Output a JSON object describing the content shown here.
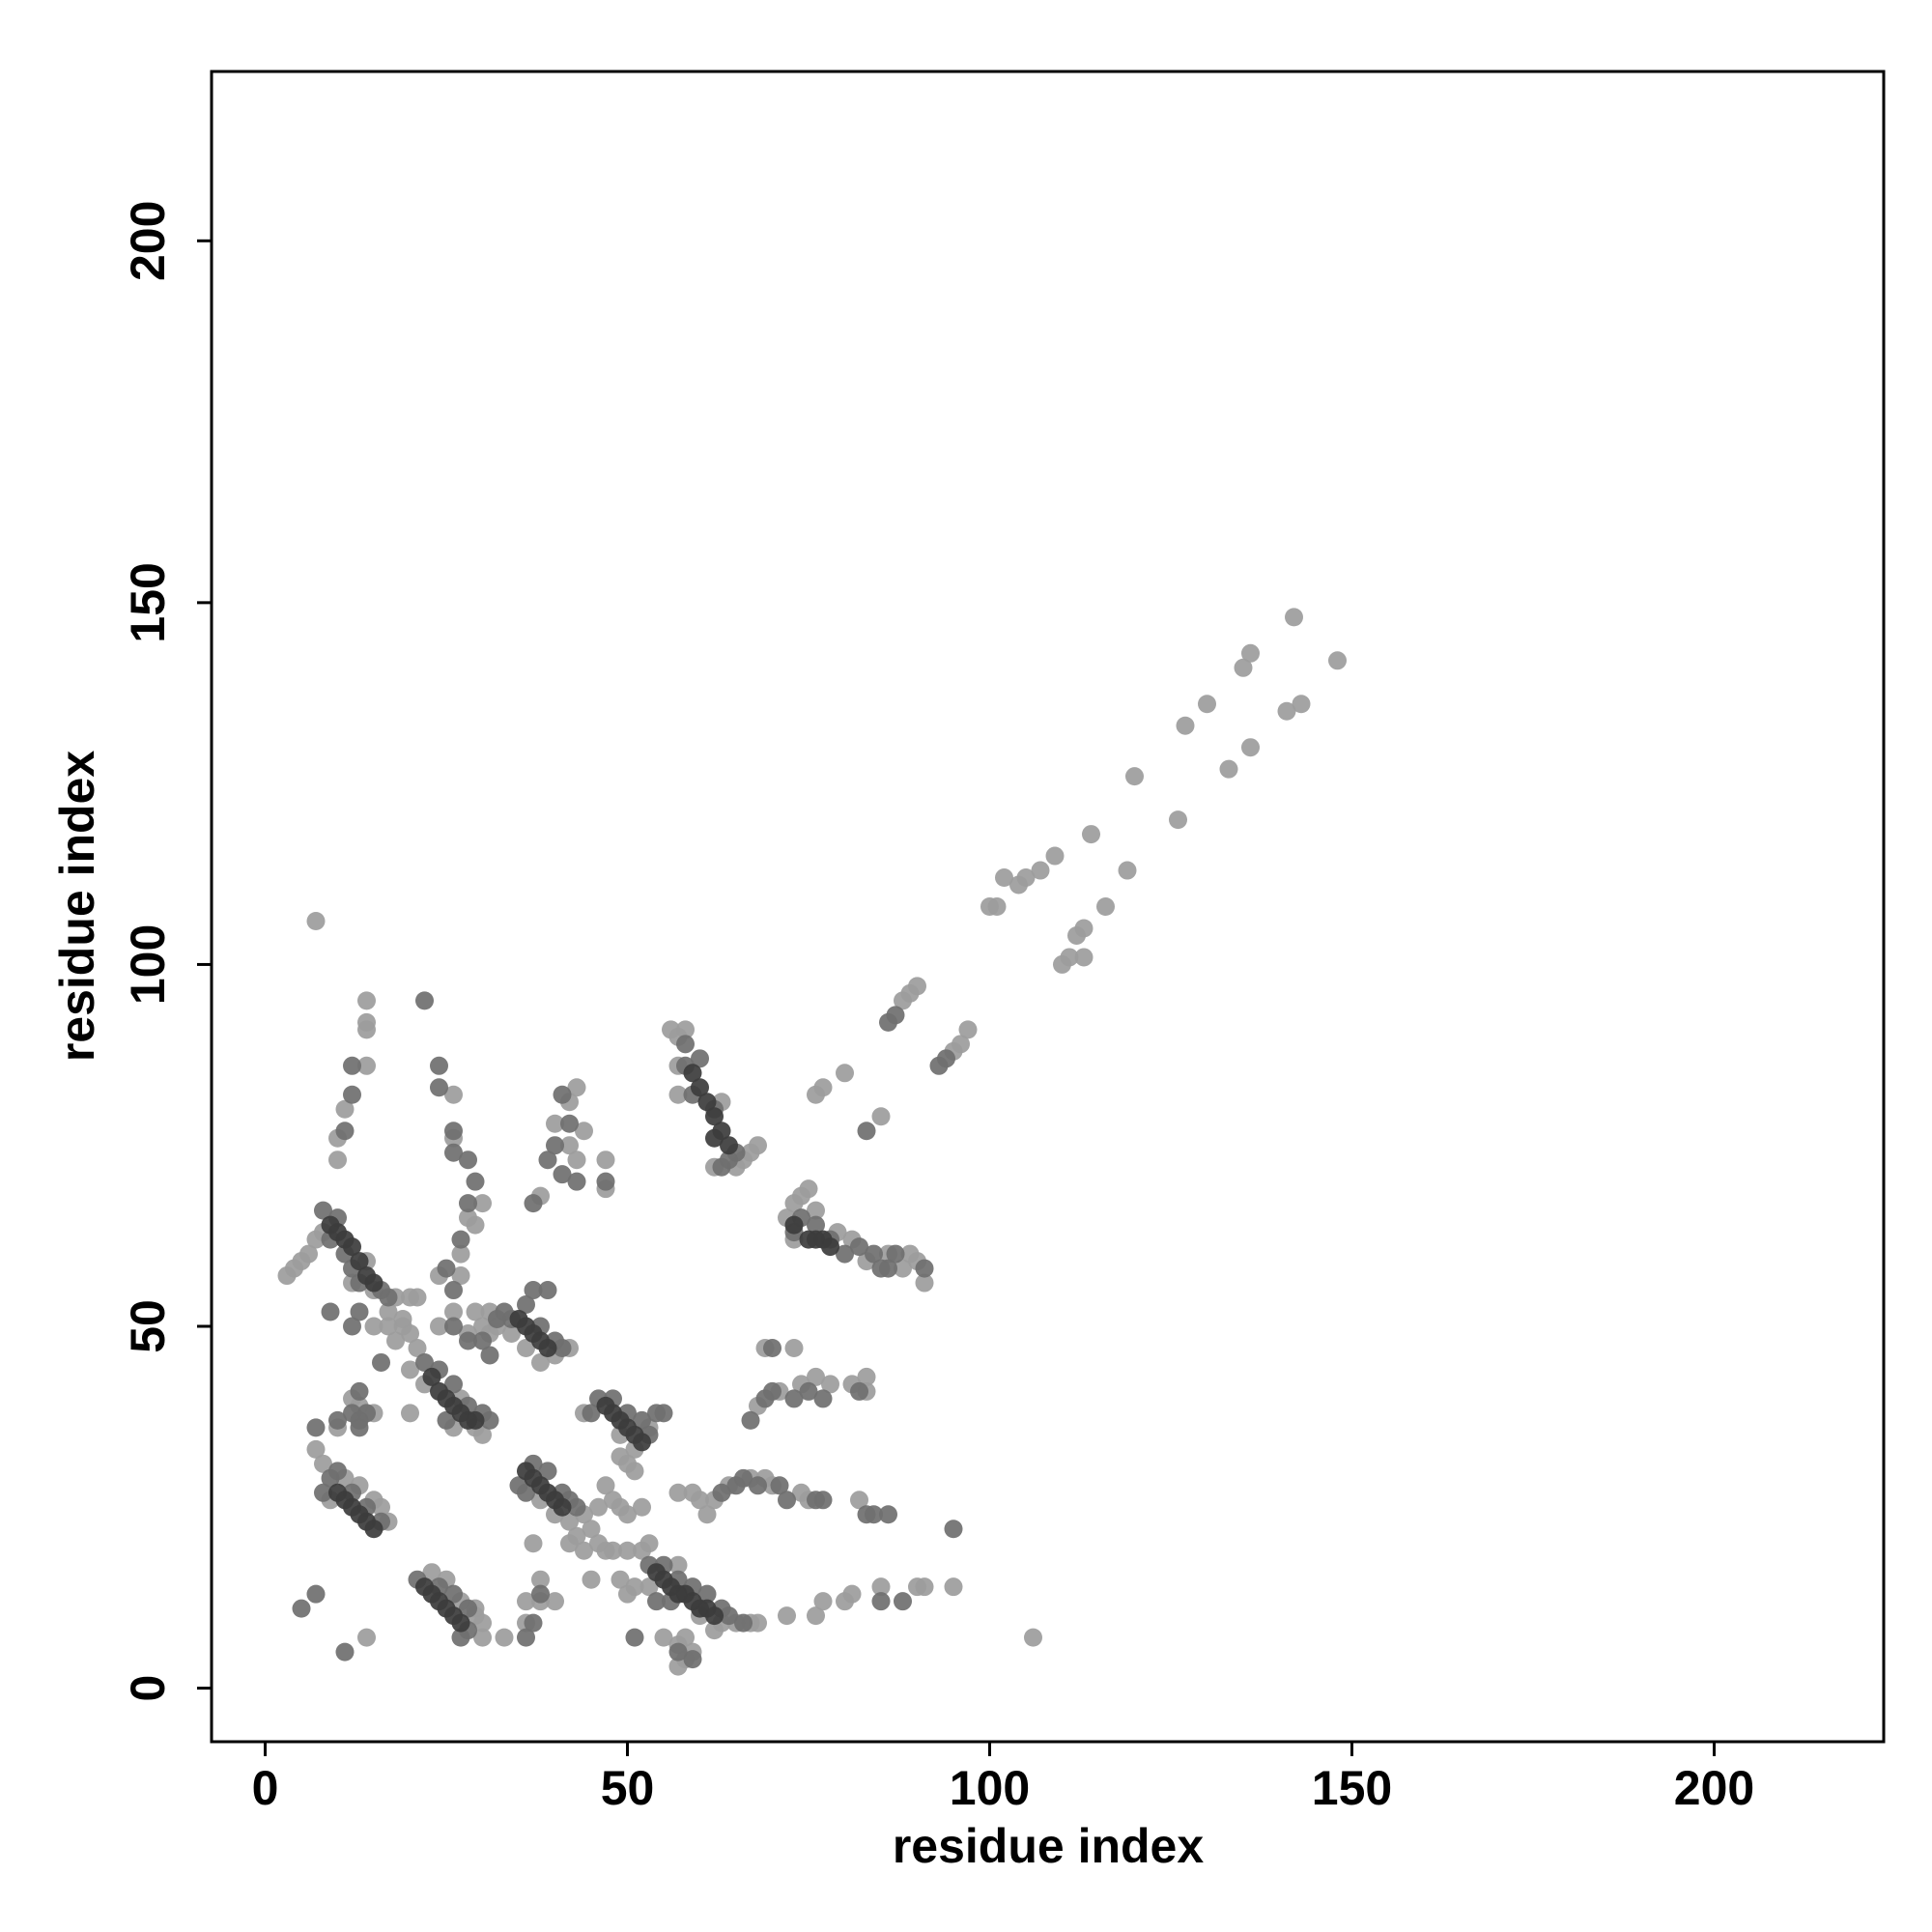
{
  "chart_data": {
    "type": "scatter",
    "xlabel": "residue index",
    "ylabel": "residue index",
    "xlim": [
      -7.4,
      223.4
    ],
    "ylim": [
      -7.4,
      223.4
    ],
    "xticks": [
      0,
      50,
      100,
      150,
      200
    ],
    "yticks": [
      0,
      50,
      100,
      150,
      200
    ],
    "series": [
      {
        "color": "#9c9c9c",
        "x": [
          3,
          5,
          6,
          7,
          8,
          4,
          14,
          15,
          18,
          20,
          21,
          12,
          17,
          11,
          13,
          15,
          16,
          17,
          9,
          23,
          25,
          27,
          29,
          30,
          30,
          29,
          21,
          20,
          22,
          27,
          29,
          30,
          26,
          20,
          19,
          32,
          34,
          36,
          38,
          40,
          31,
          30,
          28,
          42,
          38,
          40,
          42,
          44,
          45,
          43,
          42,
          44,
          47,
          46,
          44,
          49,
          51,
          53,
          50,
          49,
          51,
          47,
          48,
          49,
          50,
          52,
          53,
          52,
          50,
          48,
          49,
          51,
          53,
          57,
          60,
          63,
          65,
          67,
          68,
          62,
          57,
          58,
          57,
          59,
          58,
          55,
          50,
          56,
          57,
          58,
          57,
          57,
          63,
          65,
          66,
          67,
          68,
          62,
          72,
          73,
          74,
          75,
          76,
          79,
          81,
          83,
          86,
          88,
          89,
          90,
          91,
          73,
          68,
          69,
          71,
          73,
          74,
          76,
          78,
          81,
          83,
          83,
          62,
          64,
          67,
          69,
          70,
          74,
          75,
          82,
          59,
          57,
          60,
          61,
          76,
          77,
          80,
          85,
          88,
          89,
          90,
          95,
          96,
          97,
          100,
          101,
          102,
          104,
          105,
          107,
          109,
          110,
          111,
          112,
          113,
          113,
          114,
          116,
          119,
          120,
          126,
          127,
          130,
          133,
          135,
          136,
          136,
          141,
          142,
          143,
          148,
          14,
          14,
          14,
          14,
          10,
          10,
          11,
          7,
          8,
          10,
          12,
          26,
          26,
          28,
          29,
          30,
          27,
          24,
          27,
          26,
          38,
          40,
          42,
          43,
          42,
          43,
          44,
          47,
          47,
          24,
          29,
          31,
          15,
          17,
          19,
          18,
          20,
          13,
          15,
          37,
          36,
          33,
          36,
          38,
          38,
          40,
          45,
          46,
          7,
          106,
          14,
          72,
          76,
          77,
          80,
          81,
          85,
          90,
          91,
          95
        ],
        "y": [
          57,
          59,
          60,
          62,
          63,
          58,
          59,
          55,
          54,
          54,
          54,
          56,
          52,
          29,
          28,
          26,
          25,
          23,
          26,
          16,
          15,
          12,
          10,
          9,
          7,
          11,
          47,
          44,
          42,
          40,
          36,
          35,
          36,
          49,
          50,
          50,
          49,
          47,
          45,
          46,
          52,
          50,
          49,
          47,
          26,
          24,
          23,
          24,
          22,
          21,
          20,
          19,
          19,
          25,
          38,
          35,
          33,
          36,
          31,
          32,
          30,
          28,
          26,
          25,
          24,
          25,
          20,
          19,
          19,
          19,
          15,
          14,
          14,
          17,
          10,
          9,
          9,
          9,
          9,
          8,
          6,
          4,
          3,
          5,
          7,
          7,
          13,
          91,
          90,
          91,
          86,
          82,
          81,
          72,
          73,
          74,
          75,
          72,
          65,
          67,
          68,
          69,
          66,
          63,
          62,
          59,
          60,
          58,
          60,
          59,
          56,
          62,
          39,
          47,
          41,
          47,
          42,
          43,
          42,
          42,
          41,
          43,
          26,
          28,
          29,
          29,
          28,
          27,
          26,
          26,
          27,
          27,
          26,
          24,
          82,
          83,
          85,
          79,
          95,
          96,
          97,
          88,
          89,
          91,
          108,
          108,
          112,
          111,
          112,
          113,
          115,
          100,
          101,
          104,
          105,
          101,
          118,
          108,
          113,
          126,
          120,
          133,
          136,
          127,
          141,
          143,
          130,
          135,
          148,
          136,
          142,
          95,
          92,
          91,
          86,
          76,
          73,
          80,
          33,
          31,
          36,
          40,
          82,
          76,
          65,
          64,
          67,
          60,
          57,
          57,
          52,
          68,
          78,
          75,
          73,
          81,
          83,
          77,
          73,
          69,
          50,
          52,
          49,
          50,
          50,
          51,
          48,
          38,
          39,
          38,
          20,
          9,
          7,
          12,
          15,
          12,
          12,
          15,
          20,
          106,
          7,
          7,
          10,
          10,
          12,
          12,
          13,
          14,
          14,
          14,
          14
        ]
      },
      {
        "color": "#6f6f6f",
        "x": [
          8,
          9,
          11,
          12,
          13,
          16,
          17,
          10,
          9,
          10,
          12,
          14,
          16,
          8,
          21,
          24,
          26,
          28,
          28,
          27,
          22,
          24,
          26,
          28,
          30,
          31,
          25,
          33,
          34,
          36,
          38,
          40,
          41,
          37,
          39,
          35,
          37,
          39,
          41,
          42,
          43,
          36,
          46,
          48,
          50,
          52,
          53,
          45,
          55,
          53,
          55,
          57,
          59,
          61,
          63,
          64,
          66,
          54,
          56,
          59,
          57,
          51,
          58,
          60,
          59,
          62,
          64,
          63,
          65,
          58,
          73,
          74,
          76,
          78,
          80,
          82,
          84,
          85,
          86,
          87,
          91,
          67,
          69,
          70,
          70,
          73,
          75,
          77,
          82,
          65,
          66,
          68,
          71,
          72,
          76,
          77,
          83,
          84,
          86,
          63,
          83,
          86,
          87,
          93,
          94,
          12,
          12,
          11,
          7,
          10,
          13,
          13,
          24,
          24,
          26,
          26,
          28,
          28,
          29,
          27,
          25,
          26,
          37,
          39,
          40,
          41,
          41,
          42,
          43,
          47,
          26,
          28,
          30,
          31,
          32,
          12,
          13,
          16,
          14,
          9,
          22,
          12,
          13,
          5,
          7,
          11,
          36,
          37,
          38,
          54,
          85,
          88,
          95
        ],
        "y": [
          66,
          62,
          60,
          58,
          56,
          55,
          54,
          65,
          29,
          30,
          27,
          25,
          23,
          27,
          15,
          14,
          13,
          11,
          8,
          7,
          45,
          44,
          42,
          39,
          38,
          37,
          37,
          52,
          51,
          53,
          50,
          48,
          47,
          55,
          55,
          28,
          31,
          30,
          27,
          26,
          25,
          27,
          40,
          40,
          38,
          37,
          35,
          38,
          38,
          17,
          17,
          15,
          14,
          13,
          11,
          10,
          9,
          12,
          12,
          4,
          5,
          7,
          86,
          87,
          82,
          80,
          73,
          72,
          74,
          89,
          63,
          65,
          64,
          62,
          60,
          61,
          60,
          58,
          58,
          60,
          58,
          37,
          40,
          41,
          47,
          40,
          41,
          40,
          41,
          28,
          29,
          28,
          28,
          26,
          26,
          26,
          24,
          24,
          24,
          27,
          77,
          92,
          93,
          86,
          87,
          86,
          82,
          77,
          36,
          37,
          41,
          36,
          86,
          83,
          77,
          74,
          73,
          67,
          70,
          62,
          58,
          55,
          67,
          73,
          75,
          71,
          82,
          78,
          70,
          70,
          50,
          48,
          48,
          46,
          51,
          50,
          52,
          45,
          38,
          52,
          95,
          38,
          37,
          11,
          13,
          5,
          7,
          9,
          13,
          38,
          12,
          12,
          22
        ]
      },
      {
        "color": "#3c3c3c",
        "x": [
          9,
          10,
          11,
          12,
          13,
          14,
          15,
          10,
          11,
          12,
          13,
          14,
          15,
          22,
          23,
          24,
          25,
          26,
          27,
          23,
          24,
          25,
          26,
          27,
          28,
          29,
          35,
          36,
          37,
          38,
          39,
          36,
          37,
          38,
          39,
          40,
          41,
          47,
          48,
          49,
          50,
          51,
          52,
          54,
          55,
          56,
          57,
          58,
          59,
          60,
          61,
          62,
          59,
          60,
          61,
          62,
          63,
          64,
          62,
          75,
          76,
          77,
          78,
          73
        ],
        "y": [
          64,
          63,
          62,
          61,
          59,
          57,
          56,
          27,
          26,
          25,
          24,
          23,
          22,
          14,
          13,
          12,
          11,
          10,
          9,
          43,
          41,
          40,
          39,
          38,
          37,
          37,
          51,
          50,
          49,
          48,
          47,
          30,
          29,
          28,
          27,
          26,
          25,
          39,
          38,
          37,
          36,
          35,
          34,
          16,
          15,
          14,
          13,
          13,
          12,
          11,
          11,
          10,
          85,
          83,
          81,
          79,
          77,
          75,
          76,
          62,
          62,
          62,
          61,
          64
        ]
      }
    ]
  }
}
